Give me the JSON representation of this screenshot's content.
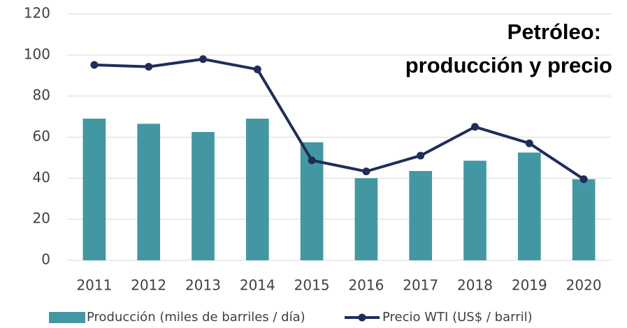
{
  "chart_data": {
    "type": "bar_line",
    "title": [
      "Petróleo:",
      "producción y precio"
    ],
    "categories": [
      "2011",
      "2012",
      "2013",
      "2014",
      "2015",
      "2016",
      "2017",
      "2018",
      "2019",
      "2020"
    ],
    "series": [
      {
        "name": "Producción (miles de barriles / día)",
        "type": "bar",
        "color": "#4397a2",
        "values": [
          69,
          66.5,
          62.5,
          69,
          57.5,
          40,
          43.5,
          48.5,
          52.5,
          39.5
        ]
      },
      {
        "name": "Precio WTI (US$ / barril)",
        "type": "line",
        "color": "#1f2d5a",
        "values": [
          95.2,
          94.3,
          98,
          93,
          48.7,
          43.3,
          51,
          65,
          57,
          39.5
        ]
      }
    ],
    "ylim": [
      0,
      120
    ],
    "yticks": [
      0,
      20,
      40,
      60,
      80,
      100,
      120
    ],
    "grid": true,
    "legend": "bottom"
  }
}
